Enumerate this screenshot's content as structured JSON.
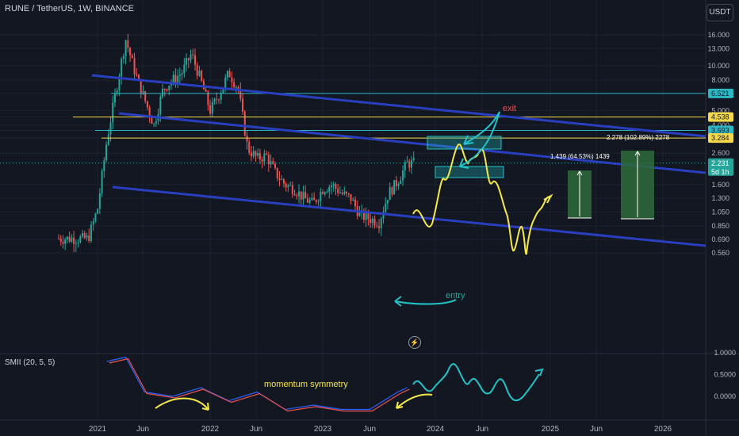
{
  "symbol_title": "RUNE / TetherUS, 1W, BINANCE",
  "currency_button": "USDT",
  "indicator_title": "SMII (20, 5, 5)",
  "flash_icon": "lightning-icon",
  "colors": {
    "background": "#131722",
    "bull": "#26a69a",
    "bear": "#ef5350",
    "channel": "#2a3fbf",
    "level_yellow": "#f5d94a",
    "level_cyan": "#2bb8c4",
    "projection_yellow": "#f5e94a",
    "annotation_cyan": "#22c3c9",
    "exit_red": "#ef5350",
    "entry_green": "#26a69a",
    "target_box": "#2e6b3a",
    "smi_blue": "#2962ff",
    "smi_red": "#ef5350"
  },
  "annotations": {
    "exit": "exit",
    "entry": "entry",
    "momentum": "momentum symmetry",
    "target1": "1.439 (64.53%) 1439",
    "target2": "2.278 (102.89%) 2278"
  },
  "price_axis": {
    "ticks": [
      "16.000",
      "13.000",
      "10.000",
      "8.000",
      "6.521",
      "5.000",
      "4.538",
      "4.000",
      "3.693",
      "3.284",
      "2.600",
      "2.231",
      "1.600",
      "1.300",
      "1.050",
      "0.850",
      "0.690",
      "0.560"
    ],
    "tags": [
      {
        "value": "6.521",
        "bg": "#2bb8c4",
        "fg": "#131722"
      },
      {
        "value": "4.538",
        "bg": "#f5d94a",
        "fg": "#131722"
      },
      {
        "value": "3.693",
        "bg": "#2bb8c4",
        "fg": "#131722"
      },
      {
        "value": "3.284",
        "bg": "#f5d94a",
        "fg": "#131722"
      },
      {
        "value": "2.231",
        "bg": "#26a69a",
        "fg": "#ffffff",
        "sub": "5d 1h"
      }
    ]
  },
  "smi_axis": {
    "ticks": [
      "1.0000",
      "0.5000",
      "0.0000"
    ]
  },
  "time_axis": {
    "ticks": [
      "2021",
      "Jun",
      "2022",
      "Jun",
      "2023",
      "Jun",
      "2024",
      "Jun",
      "2025",
      "Jun",
      "2026"
    ]
  },
  "chart_data": {
    "type": "candlestick",
    "title": "RUNE / TetherUS, 1W, BINANCE",
    "y_scale": "log",
    "ylim": [
      0.52,
      21
    ],
    "x_range": [
      "2020-11",
      "2026-03"
    ],
    "levels": [
      {
        "price": 6.521,
        "color": "cyan"
      },
      {
        "price": 4.538,
        "color": "yellow"
      },
      {
        "price": 3.693,
        "color": "cyan"
      },
      {
        "price": 3.284,
        "color": "yellow"
      },
      {
        "price": 2.231,
        "color": "dotted"
      }
    ],
    "approx_weekly_closes": {
      "dates": [
        "2020-12",
        "2021-01",
        "2021-02",
        "2021-03",
        "2021-04",
        "2021-05",
        "2021-06",
        "2021-07",
        "2021-08",
        "2021-09",
        "2021-10",
        "2021-11",
        "2021-12",
        "2022-01",
        "2022-02",
        "2022-03",
        "2022-04",
        "2022-05",
        "2022-06",
        "2022-07",
        "2022-08",
        "2022-09",
        "2022-10",
        "2022-11",
        "2022-12",
        "2023-01",
        "2023-02",
        "2023-03",
        "2023-04",
        "2023-05",
        "2023-06",
        "2023-07",
        "2023-08",
        "2023-09",
        "2023-10"
      ],
      "values": [
        0.7,
        1.1,
        3.2,
        7,
        15,
        9,
        6,
        4,
        7,
        8,
        9,
        12,
        8,
        5,
        6.5,
        9,
        7,
        2.8,
        2.4,
        2.5,
        1.9,
        1.6,
        1.5,
        1.3,
        1.2,
        1.5,
        1.6,
        1.4,
        1.3,
        1.0,
        0.95,
        0.9,
        1.4,
        1.7,
        2.23
      ]
    },
    "smi_series": {
      "name": "SMII (20, 5, 5)",
      "dates": [
        "2021-02",
        "2021-04",
        "2021-06",
        "2021-09",
        "2021-12",
        "2022-03",
        "2022-06",
        "2022-09",
        "2022-12",
        "2023-03",
        "2023-06",
        "2023-09",
        "2023-10"
      ],
      "values": [
        0.8,
        0.9,
        0.1,
        0.0,
        0.2,
        -0.1,
        0.1,
        -0.3,
        -0.2,
        -0.3,
        -0.3,
        0.1,
        0.2
      ]
    }
  }
}
